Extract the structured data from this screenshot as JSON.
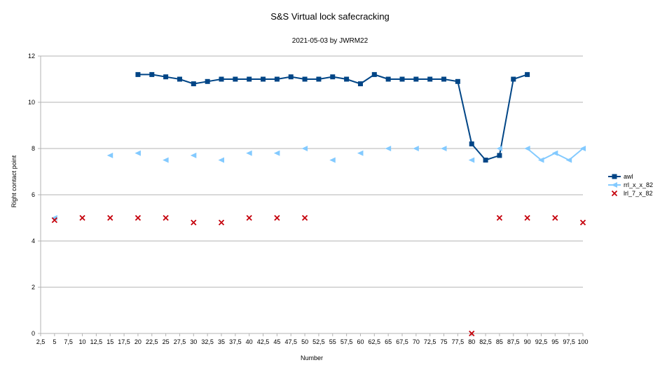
{
  "chart_data": {
    "type": "line",
    "title": "S&S Virtual lock safecracking",
    "subtitle": "2021-05-03 by JWRM22",
    "xlabel": "Number",
    "ylabel": "Right contact point",
    "xlim": [
      2.5,
      100
    ],
    "ylim": [
      0,
      12
    ],
    "x_ticks": [
      "2,5",
      "5",
      "7,5",
      "10",
      "12,5",
      "15",
      "17,5",
      "20",
      "22,5",
      "25",
      "27,5",
      "30",
      "32,5",
      "35",
      "37,5",
      "40",
      "42,5",
      "45",
      "47,5",
      "50",
      "52,5",
      "55",
      "57,5",
      "60",
      "62,5",
      "65",
      "67,5",
      "70",
      "72,5",
      "75",
      "77,5",
      "80",
      "82,5",
      "85",
      "87,5",
      "90",
      "92,5",
      "95",
      "97,5",
      "100"
    ],
    "y_ticks": [
      "0",
      "2",
      "4",
      "6",
      "8",
      "10",
      "12"
    ],
    "grid": "horizontal",
    "legend_position": "right",
    "series": [
      {
        "name": "awl",
        "color": "#004586",
        "marker": "square",
        "points": [
          [
            20,
            11.2
          ],
          [
            22.5,
            11.2
          ],
          [
            25,
            11.1
          ],
          [
            27.5,
            11.0
          ],
          [
            30,
            10.8
          ],
          [
            32.5,
            10.9
          ],
          [
            35,
            11.0
          ],
          [
            37.5,
            11.0
          ],
          [
            40,
            11.0
          ],
          [
            42.5,
            11.0
          ],
          [
            45,
            11.0
          ],
          [
            47.5,
            11.1
          ],
          [
            50,
            11.0
          ],
          [
            52.5,
            11.0
          ],
          [
            55,
            11.1
          ],
          [
            57.5,
            11.0
          ],
          [
            60,
            10.8
          ],
          [
            62.5,
            11.2
          ],
          [
            65,
            11.0
          ],
          [
            67.5,
            11.0
          ],
          [
            70,
            11.0
          ],
          [
            72.5,
            11.0
          ],
          [
            75,
            11.0
          ],
          [
            77.5,
            10.9
          ],
          [
            80,
            8.2
          ],
          [
            82.5,
            7.5
          ],
          [
            85,
            7.7
          ],
          [
            87.5,
            11.0
          ],
          [
            90,
            11.2
          ]
        ]
      },
      {
        "name": "rrl_x_x_82",
        "color": "#83CAFF",
        "marker": "triangle-left",
        "points": [
          [
            5,
            5.0
          ],
          [
            null,
            null
          ],
          [
            15,
            7.7
          ],
          [
            null,
            null
          ],
          [
            20,
            7.8
          ],
          [
            null,
            null
          ],
          [
            25,
            7.5
          ],
          [
            null,
            null
          ],
          [
            30,
            7.7
          ],
          [
            null,
            null
          ],
          [
            35,
            7.5
          ],
          [
            null,
            null
          ],
          [
            40,
            7.8
          ],
          [
            null,
            null
          ],
          [
            45,
            7.8
          ],
          [
            null,
            null
          ],
          [
            50,
            8.0
          ],
          [
            null,
            null
          ],
          [
            55,
            7.5
          ],
          [
            null,
            null
          ],
          [
            60,
            7.8
          ],
          [
            null,
            null
          ],
          [
            65,
            8.0
          ],
          [
            null,
            null
          ],
          [
            70,
            8.0
          ],
          [
            null,
            null
          ],
          [
            75,
            8.0
          ],
          [
            null,
            null
          ],
          [
            80,
            7.5
          ],
          [
            null,
            null
          ],
          [
            85,
            8.0
          ],
          [
            null,
            null
          ],
          [
            90,
            8.0
          ],
          [
            92.5,
            7.5
          ],
          [
            95,
            7.8
          ],
          [
            97.5,
            7.5
          ],
          [
            100,
            8.0
          ]
        ]
      },
      {
        "name": "lrl_7_x_82",
        "color": "#C5000B",
        "marker": "x",
        "points": [
          [
            5,
            4.9
          ],
          [
            null,
            null
          ],
          [
            10,
            5.0
          ],
          [
            null,
            null
          ],
          [
            15,
            5.0
          ],
          [
            null,
            null
          ],
          [
            20,
            5.0
          ],
          [
            null,
            null
          ],
          [
            25,
            5.0
          ],
          [
            null,
            null
          ],
          [
            30,
            4.8
          ],
          [
            null,
            null
          ],
          [
            35,
            4.8
          ],
          [
            null,
            null
          ],
          [
            40,
            5.0
          ],
          [
            null,
            null
          ],
          [
            45,
            5.0
          ],
          [
            null,
            null
          ],
          [
            50,
            5.0
          ],
          [
            null,
            null
          ],
          [
            80,
            0.0
          ],
          [
            null,
            null
          ],
          [
            85,
            5.0
          ],
          [
            null,
            null
          ],
          [
            90,
            5.0
          ],
          [
            null,
            null
          ],
          [
            95,
            5.0
          ],
          [
            null,
            null
          ],
          [
            100,
            4.8
          ]
        ]
      }
    ]
  }
}
